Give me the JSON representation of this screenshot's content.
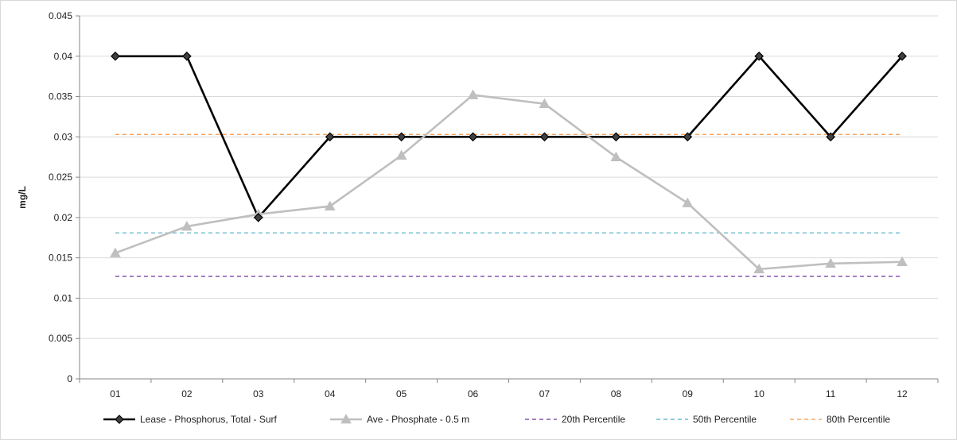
{
  "chart_data": {
    "type": "line",
    "ylabel": "mg/L",
    "xlabel": "",
    "categories": [
      "01",
      "02",
      "03",
      "04",
      "05",
      "06",
      "07",
      "08",
      "09",
      "10",
      "11",
      "12"
    ],
    "y_ticks": [
      "0",
      "0.005",
      "0.01",
      "0.015",
      "0.02",
      "0.025",
      "0.03",
      "0.035",
      "0.04",
      "0.045"
    ],
    "ylim": [
      0,
      0.045
    ],
    "grid": "horizontal",
    "legend_position": "bottom",
    "series": [
      {
        "name": "Lease - Phosphorus, Total - Surf",
        "color": "#000000",
        "style": "solid",
        "marker": "diamond",
        "values": [
          0.04,
          0.04,
          0.02,
          0.03,
          0.03,
          0.03,
          0.03,
          0.03,
          0.03,
          0.04,
          0.03,
          0.04
        ]
      },
      {
        "name": "Ave - Phosphate - 0.5 m",
        "color": "#bfbfbf",
        "style": "solid",
        "marker": "triangle",
        "values": [
          0.0156,
          0.0189,
          0.0204,
          0.0214,
          0.0277,
          0.0352,
          0.0341,
          0.0275,
          0.0218,
          0.0136,
          0.0143,
          0.0145
        ]
      },
      {
        "name": "20th Percentile",
        "color": "#7030a0",
        "style": "dashed",
        "marker": "none",
        "values": [
          0.0127,
          0.0127,
          0.0127,
          0.0127,
          0.0127,
          0.0127,
          0.0127,
          0.0127,
          0.0127,
          0.0127,
          0.0127,
          0.0127
        ]
      },
      {
        "name": "50th Percentile",
        "color": "#4bacc6",
        "style": "dashed",
        "marker": "none",
        "values": [
          0.0181,
          0.0181,
          0.0181,
          0.0181,
          0.0181,
          0.0181,
          0.0181,
          0.0181,
          0.0181,
          0.0181,
          0.0181,
          0.0181
        ]
      },
      {
        "name": "80th Percentile",
        "color": "#f79646",
        "style": "dashed",
        "marker": "none",
        "values": [
          0.0303,
          0.0303,
          0.0303,
          0.0303,
          0.0303,
          0.0303,
          0.0303,
          0.0303,
          0.0303,
          0.0303,
          0.0303,
          0.0303
        ]
      }
    ]
  }
}
